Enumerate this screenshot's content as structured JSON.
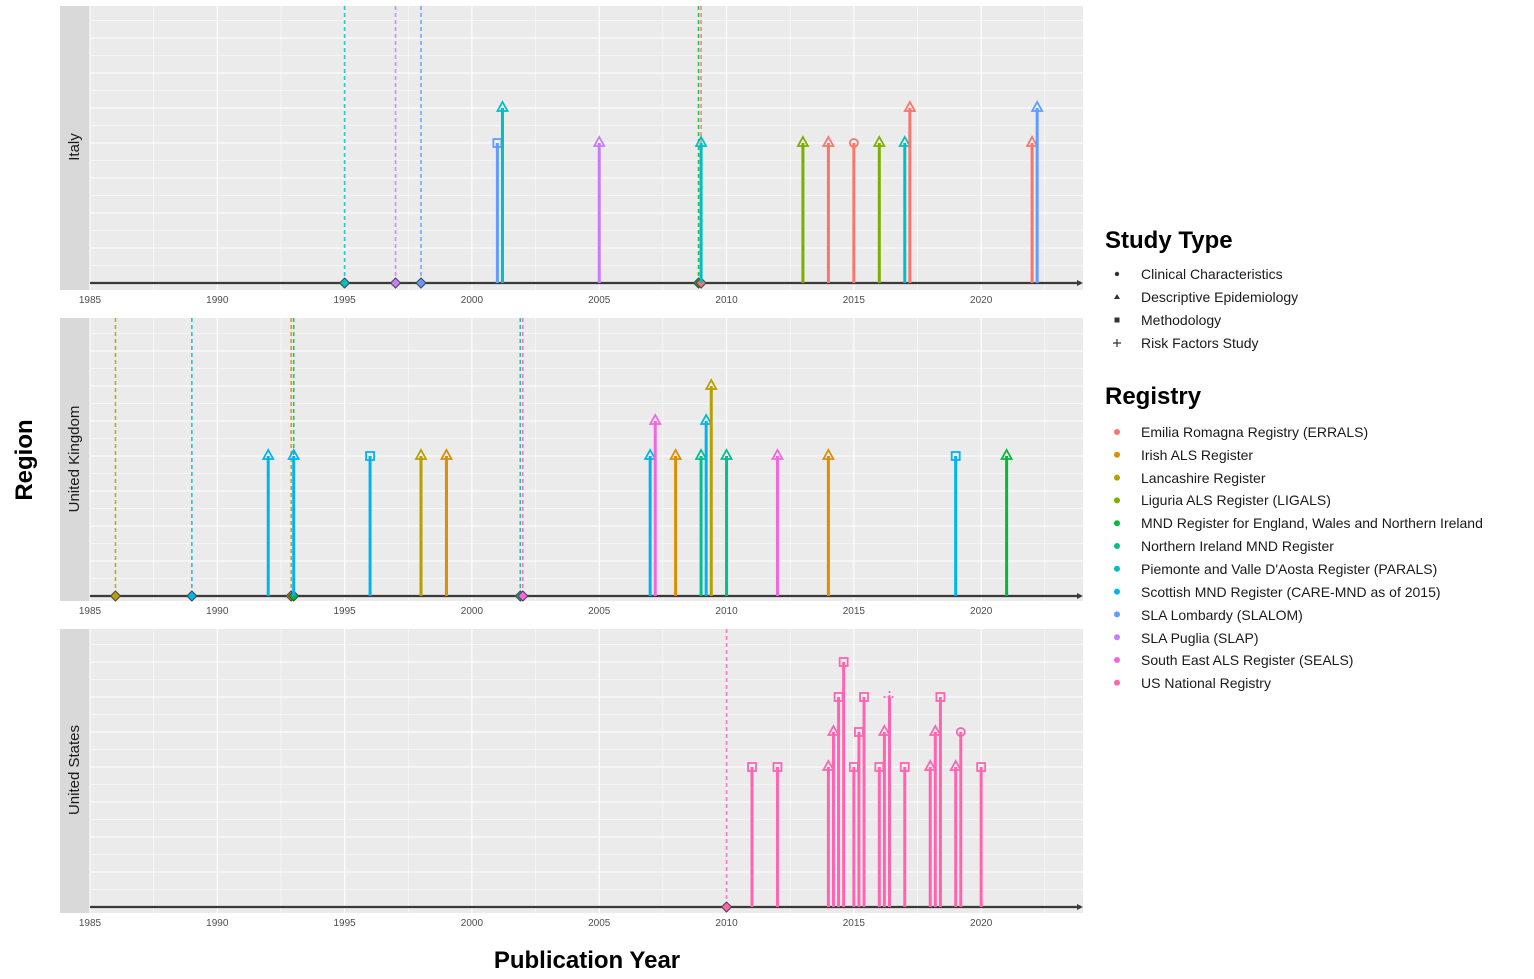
{
  "chart_data": {
    "type": "timeline-lollipop",
    "title": "",
    "xlabel": "Publication Year",
    "ylabel": "Region",
    "xlim": [
      1985,
      2024
    ],
    "x_ticks": [
      1985,
      1990,
      1995,
      2000,
      2005,
      2010,
      2015,
      2020
    ],
    "grid": true,
    "legend_position": "right",
    "study_type_legend": {
      "title": "Study Type",
      "items": [
        {
          "label": "Clinical Characteristics",
          "shape": "circle"
        },
        {
          "label": "Descriptive Epidemiology",
          "shape": "triangle"
        },
        {
          "label": "Methodology",
          "shape": "square"
        },
        {
          "label": "Risk Factors Study",
          "shape": "plus"
        }
      ]
    },
    "registry_legend": {
      "title": "Registry",
      "items": [
        {
          "label": "Emilia Romagna Registry (ERRALS)",
          "color": "#F8766D"
        },
        {
          "label": "Irish ALS Register",
          "color": "#DE8C00"
        },
        {
          "label": "Lancashire Register",
          "color": "#B79F00"
        },
        {
          "label": "Liguria ALS Register (LIGALS)",
          "color": "#7CAE00"
        },
        {
          "label": "MND Register for England, Wales and Northern Ireland",
          "color": "#00BA38"
        },
        {
          "label": "Northern Ireland MND Register",
          "color": "#00C08B"
        },
        {
          "label": "Piemonte and Valle D'Aosta Register (PARALS)",
          "color": "#00BFC4"
        },
        {
          "label": "Scottish MND Register (CARE-MND as of 2015)",
          "color": "#00B4F0"
        },
        {
          "label": "SLA Lombardy (SLALOM)",
          "color": "#619CFF"
        },
        {
          "label": "SLA Puglia (SLAP)",
          "color": "#C77CFF"
        },
        {
          "label": "South East ALS Register (SEALS)",
          "color": "#F564E3"
        },
        {
          "label": "US National Registry",
          "color": "#FF64B0"
        }
      ]
    },
    "panels": [
      {
        "region": "Italy",
        "registry_starts": [
          {
            "year": 1995,
            "registry": 6
          },
          {
            "year": 1997,
            "registry": 9
          },
          {
            "year": 1998,
            "registry": 8
          },
          {
            "year": 2008.9,
            "registry": 4
          },
          {
            "year": 2009,
            "registry": 0
          }
        ],
        "studies": [
          {
            "year": 2001.0,
            "level": 4,
            "registry": 8,
            "type": "square"
          },
          {
            "year": 2001.2,
            "level": 5,
            "registry": 6,
            "type": "triangle"
          },
          {
            "year": 2005.0,
            "level": 4,
            "registry": 9,
            "type": "triangle"
          },
          {
            "year": 2009.0,
            "level": 4,
            "registry": 6,
            "type": "triangle"
          },
          {
            "year": 2013.0,
            "level": 4,
            "registry": 3,
            "type": "triangle"
          },
          {
            "year": 2014.0,
            "level": 4,
            "registry": 0,
            "type": "triangle"
          },
          {
            "year": 2015.0,
            "level": 4,
            "registry": 0,
            "type": "circle"
          },
          {
            "year": 2016.0,
            "level": 4,
            "registry": 3,
            "type": "triangle"
          },
          {
            "year": 2017.0,
            "level": 4,
            "registry": 6,
            "type": "triangle"
          },
          {
            "year": 2017.2,
            "level": 5,
            "registry": 0,
            "type": "triangle"
          },
          {
            "year": 2022.0,
            "level": 4,
            "registry": 0,
            "type": "triangle"
          },
          {
            "year": 2022.2,
            "level": 5,
            "registry": 8,
            "type": "triangle"
          }
        ]
      },
      {
        "region": "United Kingdom",
        "registry_starts": [
          {
            "year": 1986,
            "registry": 2
          },
          {
            "year": 1989,
            "registry": 7
          },
          {
            "year": 1992.9,
            "registry": 1
          },
          {
            "year": 1993,
            "registry": 4
          },
          {
            "year": 2001.9,
            "registry": 5
          },
          {
            "year": 2002,
            "registry": 10
          }
        ],
        "studies": [
          {
            "year": 1992.0,
            "level": 4,
            "registry": 7,
            "type": "triangle"
          },
          {
            "year": 1993.0,
            "level": 4,
            "registry": 7,
            "type": "triangle"
          },
          {
            "year": 1996.0,
            "level": 4,
            "registry": 7,
            "type": "square"
          },
          {
            "year": 1998.0,
            "level": 4,
            "registry": 2,
            "type": "triangle"
          },
          {
            "year": 1999.0,
            "level": 4,
            "registry": 1,
            "type": "triangle"
          },
          {
            "year": 2007.0,
            "level": 4,
            "registry": 7,
            "type": "triangle"
          },
          {
            "year": 2007.2,
            "level": 5,
            "registry": 10,
            "type": "triangle"
          },
          {
            "year": 2008.0,
            "level": 4,
            "registry": 1,
            "type": "triangle"
          },
          {
            "year": 2009.0,
            "level": 4,
            "registry": 5,
            "type": "triangle"
          },
          {
            "year": 2009.2,
            "level": 5,
            "registry": 7,
            "type": "triangle"
          },
          {
            "year": 2009.4,
            "level": 6,
            "registry": 2,
            "type": "triangle"
          },
          {
            "year": 2010.0,
            "level": 4,
            "registry": 5,
            "type": "triangle"
          },
          {
            "year": 2012.0,
            "level": 4,
            "registry": 10,
            "type": "triangle"
          },
          {
            "year": 2014.0,
            "level": 4,
            "registry": 1,
            "type": "triangle"
          },
          {
            "year": 2019.0,
            "level": 4,
            "registry": 7,
            "type": "square"
          },
          {
            "year": 2021.0,
            "level": 4,
            "registry": 4,
            "type": "triangle"
          }
        ]
      },
      {
        "region": "United States",
        "registry_starts": [
          {
            "year": 2010,
            "registry": 11
          }
        ],
        "studies": [
          {
            "year": 2011.0,
            "level": 4,
            "registry": 11,
            "type": "square"
          },
          {
            "year": 2012.0,
            "level": 4,
            "registry": 11,
            "type": "square"
          },
          {
            "year": 2014.0,
            "level": 4,
            "registry": 11,
            "type": "triangle"
          },
          {
            "year": 2014.2,
            "level": 5,
            "registry": 11,
            "type": "triangle"
          },
          {
            "year": 2014.4,
            "level": 6,
            "registry": 11,
            "type": "square"
          },
          {
            "year": 2014.6,
            "level": 7,
            "registry": 11,
            "type": "square"
          },
          {
            "year": 2015.0,
            "level": 4,
            "registry": 11,
            "type": "square"
          },
          {
            "year": 2015.2,
            "level": 5,
            "registry": 11,
            "type": "square"
          },
          {
            "year": 2015.4,
            "level": 6,
            "registry": 11,
            "type": "square"
          },
          {
            "year": 2016.0,
            "level": 4,
            "registry": 11,
            "type": "square"
          },
          {
            "year": 2016.2,
            "level": 5,
            "registry": 11,
            "type": "triangle"
          },
          {
            "year": 2016.4,
            "level": 6,
            "registry": 11,
            "type": "plus"
          },
          {
            "year": 2017.0,
            "level": 4,
            "registry": 11,
            "type": "square"
          },
          {
            "year": 2018.0,
            "level": 4,
            "registry": 11,
            "type": "triangle"
          },
          {
            "year": 2018.2,
            "level": 5,
            "registry": 11,
            "type": "triangle"
          },
          {
            "year": 2018.4,
            "level": 6,
            "registry": 11,
            "type": "square"
          },
          {
            "year": 2019.0,
            "level": 4,
            "registry": 11,
            "type": "triangle"
          },
          {
            "year": 2019.2,
            "level": 5,
            "registry": 11,
            "type": "circle"
          },
          {
            "year": 2020.0,
            "level": 4,
            "registry": 11,
            "type": "square"
          }
        ]
      }
    ]
  }
}
